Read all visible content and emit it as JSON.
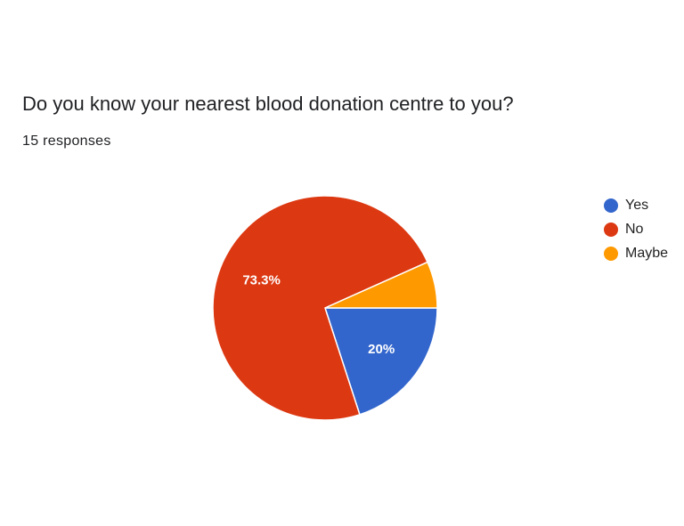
{
  "question": {
    "title": "Do you know your nearest blood donation centre to you?",
    "responses": "15 responses"
  },
  "chart_data": {
    "type": "pie",
    "title": "Do you know your nearest blood donation centre to you?",
    "total_responses": 15,
    "legend_position": "right",
    "slices": [
      {
        "name": "Yes",
        "count": 3,
        "percent": 20.0,
        "label": "20%",
        "color": "#3366CC"
      },
      {
        "name": "No",
        "count": 11,
        "percent": 73.3,
        "label": "73.3%",
        "color": "#DC3912"
      },
      {
        "name": "Maybe",
        "count": 1,
        "percent": 6.7,
        "label": "",
        "color": "#FF9900"
      }
    ]
  },
  "legend": {
    "items": [
      {
        "label": "Yes",
        "color": "#3366CC"
      },
      {
        "label": "No",
        "color": "#DC3912"
      },
      {
        "label": "Maybe",
        "color": "#FF9900"
      }
    ]
  }
}
